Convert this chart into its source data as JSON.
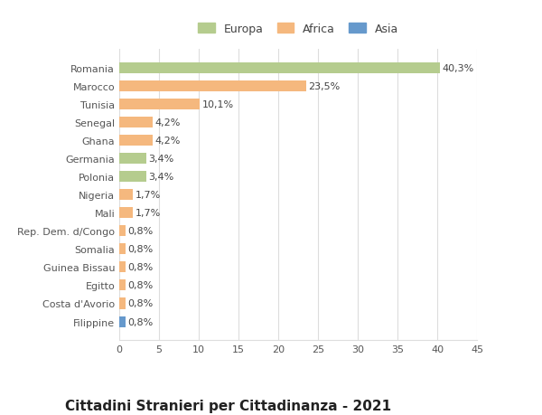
{
  "categories": [
    "Filippine",
    "Costa d'Avorio",
    "Egitto",
    "Guinea Bissau",
    "Somalia",
    "Rep. Dem. d/Congo",
    "Mali",
    "Nigeria",
    "Polonia",
    "Germania",
    "Ghana",
    "Senegal",
    "Tunisia",
    "Marocco",
    "Romania"
  ],
  "values": [
    0.8,
    0.8,
    0.8,
    0.8,
    0.8,
    0.8,
    1.7,
    1.7,
    3.4,
    3.4,
    4.2,
    4.2,
    10.1,
    23.5,
    40.3
  ],
  "labels": [
    "0,8%",
    "0,8%",
    "0,8%",
    "0,8%",
    "0,8%",
    "0,8%",
    "1,7%",
    "1,7%",
    "3,4%",
    "3,4%",
    "4,2%",
    "4,2%",
    "10,1%",
    "23,5%",
    "40,3%"
  ],
  "continents": [
    "Asia",
    "Africa",
    "Africa",
    "Africa",
    "Africa",
    "Africa",
    "Africa",
    "Africa",
    "Europa",
    "Europa",
    "Africa",
    "Africa",
    "Africa",
    "Africa",
    "Europa"
  ],
  "colors": {
    "Europa": "#b5cc8e",
    "Africa": "#f5b87e",
    "Asia": "#6699cc"
  },
  "legend_labels": [
    "Europa",
    "Africa",
    "Asia"
  ],
  "legend_colors": [
    "#b5cc8e",
    "#f5b87e",
    "#6699cc"
  ],
  "title": "Cittadini Stranieri per Cittadinanza - 2021",
  "xlim": [
    0,
    45
  ],
  "xticks": [
    0,
    5,
    10,
    15,
    20,
    25,
    30,
    35,
    40,
    45
  ],
  "bar_height": 0.6,
  "background_color": "#ffffff",
  "grid_color": "#dddddd",
  "label_fontsize": 8,
  "tick_fontsize": 8,
  "title_fontsize": 11,
  "subtitle_fontsize": 8
}
